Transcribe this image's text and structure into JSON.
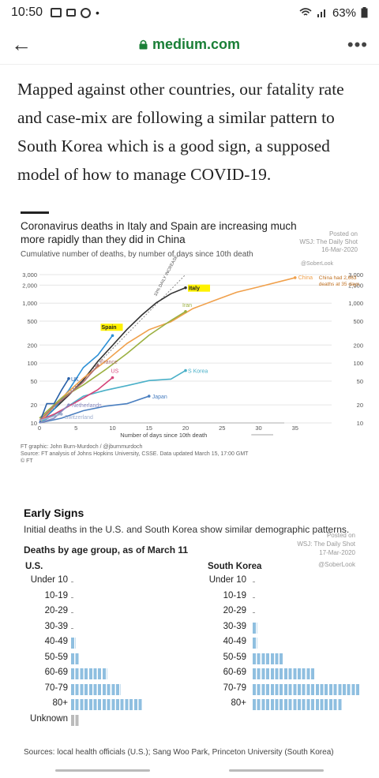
{
  "status_bar": {
    "time": "10:50",
    "battery": "63%",
    "dot": "•"
  },
  "browser": {
    "back_icon": "←",
    "url": "medium.com",
    "menu_icon": "•••"
  },
  "article": {
    "paragraph": "Mapped against other countries, our fatality rate and case-mix are following a similar pattern to South Korea which is a good sign, a supposed model of how to manage COVID-19."
  },
  "figure1": {
    "title": "Coronavirus deaths in Italy and Spain are increasing much more rapidly than they did in China",
    "subtitle": "Cumulative number of deaths, by number of days since 10th death",
    "posted": [
      "Posted on",
      "WSJ: The Daily Shot",
      "16-Mar-2020",
      "@SoberLook"
    ],
    "credit_1": "FT graphic: John Burn-Murdoch / @jburnmurdoch",
    "credit_2": "Source: FT analysis of Johns Hopkins University, CSSE. Data updated March 15, 17:00 GMT",
    "credit_3": "© FT",
    "china_note_1": "China had 2,663",
    "china_note_2": "deaths at 35 days",
    "doubling_note": "33% DAILY INCREASE",
    "colors": {
      "italy": "#333333",
      "spain": "#2b8fd6",
      "china": "#f0a04b",
      "iran": "#9bb040",
      "skorea": "#4ab0c8",
      "us": "#d6457a",
      "uk": "#2860a8",
      "france": "#b07070",
      "japan": "#4a7fc0",
      "netherlands": "#8a8ac0",
      "switzerland": "#a0b0d0"
    },
    "chart_data": {
      "type": "line",
      "title": "Coronavirus deaths in Italy and Spain are increasing much more rapidly than they did in China",
      "xlabel": "Number of days since 10th death",
      "ylabel": "",
      "xlim": [
        0,
        40
      ],
      "ylim": [
        10,
        3000
      ],
      "y_scale": "log",
      "x_ticks": [
        "0",
        "5",
        "10",
        "15",
        "20",
        "25",
        "30",
        "35"
      ],
      "y_ticks": [
        "10",
        "20",
        "50",
        "100",
        "200",
        "500",
        "1,000",
        "2,000",
        "3,000"
      ],
      "series": [
        {
          "name": "Italy",
          "x": [
            0,
            2,
            4,
            6,
            8,
            10,
            12,
            14,
            16,
            18,
            20
          ],
          "y": [
            10,
            17,
            29,
            52,
            107,
            197,
            366,
            631,
            1016,
            1441,
            1809
          ]
        },
        {
          "name": "Spain",
          "x": [
            0,
            2,
            4,
            6,
            8,
            10
          ],
          "y": [
            10,
            17,
            35,
            84,
            136,
            288
          ]
        },
        {
          "name": "China",
          "x": [
            0,
            3,
            6,
            9,
            12,
            15,
            18,
            21,
            24,
            27,
            30,
            35
          ],
          "y": [
            10,
            26,
            56,
            106,
            213,
            361,
            490,
            811,
            1113,
            1523,
            1868,
            2663
          ]
        },
        {
          "name": "Iran",
          "x": [
            0,
            3,
            6,
            9,
            12,
            15,
            18,
            20
          ],
          "y": [
            12,
            26,
            43,
            77,
            145,
            291,
            514,
            724
          ]
        },
        {
          "name": "S Korea",
          "x": [
            0,
            3,
            6,
            9,
            12,
            15,
            18,
            20
          ],
          "y": [
            10,
            16,
            28,
            35,
            42,
            51,
            54,
            75
          ]
        },
        {
          "name": "US",
          "x": [
            0,
            2,
            4,
            6,
            8,
            10
          ],
          "y": [
            11,
            14,
            19,
            26,
            36,
            57
          ]
        },
        {
          "name": "UK",
          "x": [
            0,
            1,
            2,
            3,
            4
          ],
          "y": [
            10,
            21,
            21,
            35,
            55
          ]
        },
        {
          "name": "France",
          "x": [
            0,
            2,
            4,
            6,
            8
          ],
          "y": [
            11,
            19,
            30,
            48,
            91
          ]
        },
        {
          "name": "Japan",
          "x": [
            0,
            3,
            6,
            9,
            12,
            15
          ],
          "y": [
            10,
            12,
            16,
            19,
            21,
            28
          ]
        },
        {
          "name": "Netherlands",
          "x": [
            0,
            2,
            4
          ],
          "y": [
            10,
            12,
            20
          ]
        },
        {
          "name": "Switzerland",
          "x": [
            0,
            2,
            3
          ],
          "y": [
            11,
            13,
            14
          ]
        }
      ]
    }
  },
  "figure2": {
    "title": "Early Signs",
    "subtitle": "Initial deaths in the U.S. and South Korea show similar demographic patterns.",
    "posted": [
      "Posted on",
      "WSJ: The Daily Shot",
      "17-Mar-2020",
      "@SoberLook"
    ],
    "subhead": "Deaths by age group, as of March 11",
    "us_label": "U.S.",
    "sk_label": "South Korea",
    "sources": "Sources: local health officials (U.S.); Sang Woo Park, Princeton University (South Korea)",
    "bar_color": "#8fbfe0",
    "unknown_color": "#bbbbbb",
    "chart_data": {
      "type": "bar",
      "title": "Early Signs",
      "subtitle": "Deaths by age group, as of March 11",
      "categories": [
        "Under 10",
        "10-19",
        "20-29",
        "30-39",
        "40-49",
        "50-59",
        "60-69",
        "70-79",
        "80+",
        "Unknown"
      ],
      "series": [
        {
          "name": "U.S.",
          "values": [
            0,
            0,
            0,
            0,
            1,
            2,
            8,
            11,
            16,
            2
          ]
        },
        {
          "name": "South Korea",
          "values": [
            0,
            0,
            0,
            1,
            1,
            7,
            14,
            24,
            20,
            null
          ]
        }
      ]
    }
  }
}
